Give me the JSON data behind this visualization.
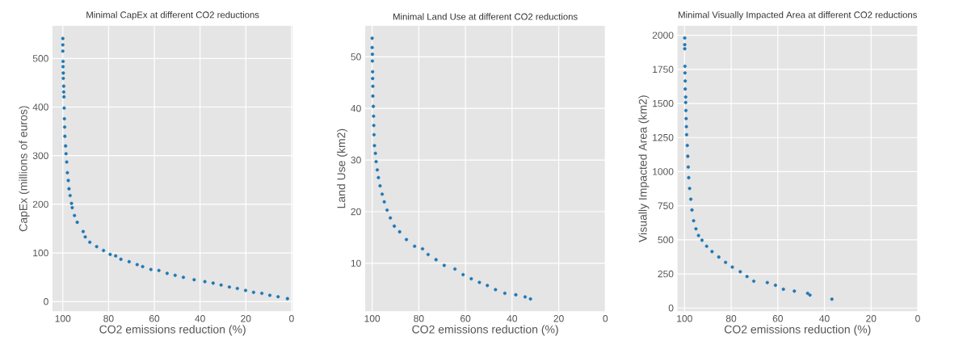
{
  "chart_data": [
    {
      "type": "scatter",
      "title": "Minimal CapEx at different CO2 reductions",
      "xlabel": "CO2 emissions reduction (%)",
      "ylabel": "CapEx (millions of euros)",
      "color": "#1f77b4",
      "marker": "circle",
      "grid": true,
      "xlim": [
        104.5,
        -0.5
      ],
      "ylim": [
        -20,
        567
      ],
      "xticks": [
        100,
        80,
        60,
        40,
        20,
        0
      ],
      "yticks": [
        0,
        100,
        200,
        300,
        400,
        500
      ],
      "x": [
        100,
        100,
        100,
        99.9,
        99.9,
        99.8,
        99.8,
        99.6,
        99.6,
        99.5,
        99.4,
        99.3,
        99.2,
        99.1,
        98.8,
        98.6,
        98.3,
        98.0,
        97.6,
        97.3,
        96.8,
        96.2,
        95.9,
        94.9,
        93.7,
        91.1,
        90.2,
        88.2,
        85.2,
        82.2,
        79.3,
        76.9,
        74.6,
        71,
        67.5,
        65.1,
        61.5,
        58,
        54.4,
        50.9,
        47.3,
        42.6,
        37.9,
        34.3,
        30.8,
        27.2,
        23.7,
        20.1,
        16.6,
        13,
        9.5,
        5.9,
        1.8
      ],
      "values": [
        541,
        528,
        515,
        494,
        483,
        470,
        459,
        443,
        431,
        421,
        398,
        376,
        359,
        340,
        320,
        304,
        287,
        265,
        249,
        232,
        218,
        202,
        193,
        177,
        163,
        144,
        133,
        122,
        113,
        105,
        97,
        94,
        87,
        82,
        76,
        72,
        66,
        64,
        58,
        54,
        50,
        45,
        41,
        38,
        34,
        30,
        27,
        23,
        19,
        17,
        13,
        10,
        6
      ]
    },
    {
      "type": "scatter",
      "title": "Minimal Land Use at different CO2 reductions",
      "xlabel": "CO2 emissions reduction (%)",
      "ylabel": "Land Use (km2)",
      "color": "#1f77b4",
      "marker": "circle",
      "grid": true,
      "xlim": [
        103,
        0
      ],
      "ylim": [
        0.7,
        56
      ],
      "xticks": [
        100,
        80,
        60,
        40,
        20,
        0
      ],
      "yticks": [
        10,
        20,
        30,
        40,
        50
      ],
      "x": [
        100,
        100,
        99.9,
        99.9,
        99.8,
        99.8,
        99.7,
        99.7,
        99.5,
        99.4,
        99.3,
        99.2,
        99,
        98.6,
        98.3,
        97.8,
        97.3,
        96.6,
        95.7,
        94.8,
        93.6,
        92.2,
        90.5,
        88.2,
        85.3,
        81.8,
        78.4,
        76,
        72.6,
        69.1,
        64.5,
        61,
        57.5,
        54,
        50.6,
        47.1,
        43.1,
        38.4,
        34.4,
        32.1
      ],
      "values": [
        53.6,
        51.8,
        50.5,
        49.2,
        47.1,
        45.8,
        44.3,
        42.4,
        40.4,
        38.5,
        36.7,
        34.9,
        32.8,
        31.3,
        29.7,
        28.1,
        26.6,
        25,
        23.4,
        21.9,
        20.3,
        18.8,
        17.2,
        16.1,
        14.6,
        13.3,
        12.8,
        11.7,
        10.7,
        9.6,
        8.9,
        7.8,
        7.0,
        6.3,
        5.7,
        4.9,
        4.2,
        3.9,
        3.5,
        3.1
      ]
    },
    {
      "type": "scatter",
      "title": "Minimal Visually Impacted Area at different CO2 reductions",
      "xlabel": "CO2 emissions reduction (%)",
      "ylabel": "Visually Impacted Area (km2)",
      "color": "#1f77b4",
      "marker": "circle",
      "grid": true,
      "xlim": [
        103,
        0
      ],
      "ylim": [
        -24,
        2069
      ],
      "xticks": [
        100,
        80,
        60,
        40,
        20,
        0
      ],
      "yticks": [
        0,
        250,
        500,
        750,
        1000,
        1250,
        1500,
        1750,
        2000
      ],
      "x": [
        99.9,
        99.9,
        99.9,
        99.8,
        99.8,
        99.7,
        99.7,
        99.5,
        99.5,
        99.4,
        99.3,
        99.2,
        99.1,
        98.8,
        98.6,
        98.4,
        98.2,
        97.8,
        97.3,
        96.8,
        96.1,
        95.1,
        94,
        92.5,
        90.5,
        88.2,
        85.3,
        82.4,
        79.5,
        76.1,
        73.2,
        70.3,
        64.5,
        61,
        57.6,
        52.9,
        47.2,
        46.2,
        36.8
      ],
      "values": [
        1980,
        1931,
        1901,
        1773,
        1724,
        1665,
        1606,
        1547,
        1507,
        1448,
        1389,
        1330,
        1271,
        1192,
        1113,
        1034,
        956,
        877,
        798,
        719,
        640,
        581,
        532,
        497,
        453,
        414,
        374,
        335,
        300,
        266,
        231,
        197,
        187,
        167,
        138,
        124,
        108,
        95,
        65
      ]
    }
  ]
}
